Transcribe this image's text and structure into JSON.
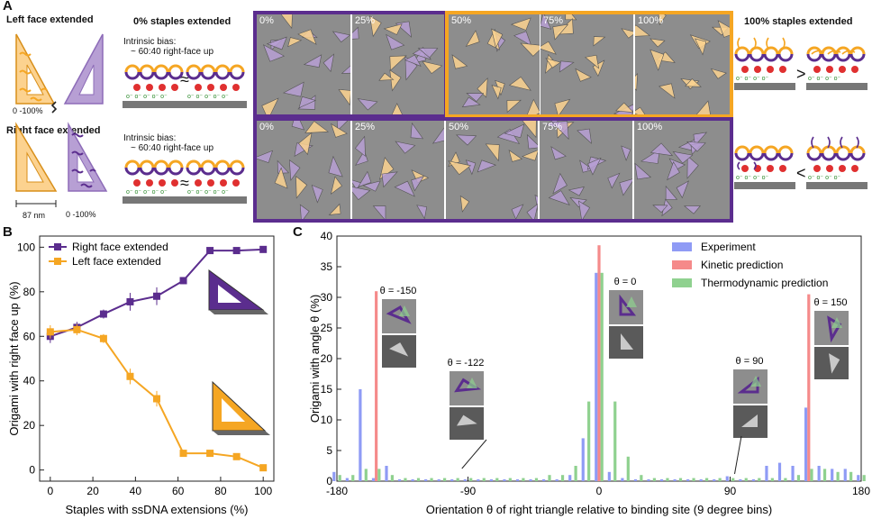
{
  "panel_a": {
    "letter": "A",
    "left_face_title": "Left face extended",
    "right_face_title": "Right face extended",
    "range_top": "0 -100%",
    "range_bottom": "0 -100%",
    "scale_label": "87 nm",
    "zero_title": "0% staples extended",
    "bias_line1": "Intrinsic bias:",
    "bias_line2": "~ 60:40 right-face up",
    "approx_symbol": "≈",
    "hundred_title": "100% staples extended",
    "greater_symbol": ">",
    "less_symbol": "<",
    "top_row_labels": [
      "0%",
      "25%",
      "50%",
      "75%",
      "100%"
    ],
    "bottom_row_labels": [
      "0%",
      "25%",
      "50%",
      "75%",
      "100%"
    ],
    "colors": {
      "purple": "#5b2d8e",
      "orange": "#f5a623",
      "light_purple": "#b79fd4",
      "light_orange": "#fcd28f"
    }
  },
  "panel_b": {
    "letter": "B",
    "chart_data": {
      "type": "line",
      "xlabel": "Staples with ssDNA extensions (%)",
      "ylabel": "Origami with right face up (%)",
      "x": [
        0,
        12.5,
        25,
        37.5,
        50,
        62.5,
        75,
        87.5,
        100
      ],
      "xlim": [
        -5,
        105
      ],
      "ylim": [
        -5,
        105
      ],
      "xticks": [
        0,
        20,
        40,
        60,
        80,
        100
      ],
      "yticks": [
        0,
        20,
        40,
        60,
        80,
        100
      ],
      "legend_position": "top-left",
      "series": [
        {
          "name": "Right face extended",
          "color": "#5b2d8e",
          "values": [
            60,
            64,
            70,
            75.5,
            78,
            85,
            98.5,
            98.5,
            99
          ],
          "errors": [
            3,
            2.5,
            2,
            4,
            4,
            1.5,
            1.5,
            1,
            1
          ]
        },
        {
          "name": "Left face extended",
          "color": "#f5a623",
          "values": [
            62,
            63,
            59,
            42,
            32,
            7.5,
            7.5,
            6,
            1
          ],
          "errors": [
            3,
            2.5,
            2,
            3.5,
            3.5,
            1,
            1,
            1,
            1.5
          ]
        }
      ]
    }
  },
  "panel_c": {
    "letter": "C",
    "chart_data": {
      "type": "bar",
      "xlabel": "Orientation θ of right triangle relative to binding site (9 degree bins)",
      "ylabel": "Origami with angle θ  (%)",
      "xlim": [
        -180,
        180
      ],
      "ylim": [
        0,
        40
      ],
      "xticks": [
        -180,
        -90,
        0,
        90,
        180
      ],
      "yticks": [
        0,
        5,
        10,
        15,
        20,
        25,
        30,
        35,
        40
      ],
      "legend_position": "top-right",
      "bin_width": 9,
      "series": [
        {
          "name": "Experiment",
          "color": "#8f9bf5",
          "x": [
            -180,
            -171,
            -162,
            -153,
            -144,
            -135,
            -126,
            -117,
            -108,
            -99,
            -90,
            -81,
            -72,
            -63,
            -54,
            -45,
            -36,
            -27,
            -18,
            -9,
            0,
            9,
            18,
            27,
            36,
            45,
            54,
            63,
            72,
            81,
            90,
            99,
            108,
            117,
            126,
            135,
            144,
            153,
            162,
            171,
            180
          ],
          "values": [
            1.5,
            0.5,
            15,
            0.5,
            2.5,
            0.3,
            0.3,
            0.3,
            0.3,
            0.3,
            0.3,
            0.3,
            0.3,
            0.3,
            0.3,
            0.3,
            0.3,
            0.3,
            1,
            7,
            34,
            1.5,
            0.5,
            0.3,
            0.3,
            0.3,
            0.3,
            0.3,
            0.3,
            0.3,
            0.8,
            0.3,
            0.3,
            2.5,
            3,
            2.5,
            12,
            2.5,
            2,
            2,
            1
          ]
        },
        {
          "name": "Kinetic prediction",
          "color": "#f58a8a",
          "x": [
            -153,
            0,
            144
          ],
          "values": [
            31,
            38.5,
            30.5
          ]
        },
        {
          "name": "Thermodynamic prediction",
          "color": "#8fd18f",
          "x": [
            -180,
            -171,
            -162,
            -153,
            -144,
            -135,
            -126,
            -117,
            -108,
            -99,
            -90,
            -81,
            -72,
            -63,
            -54,
            -45,
            -36,
            -27,
            -18,
            -9,
            0,
            9,
            18,
            27,
            36,
            45,
            54,
            63,
            72,
            81,
            90,
            99,
            108,
            117,
            126,
            135,
            144,
            153,
            162,
            171,
            180
          ],
          "values": [
            1,
            1,
            2,
            2,
            1,
            0.5,
            0.5,
            0.5,
            0.5,
            0.5,
            0.5,
            0.5,
            0.5,
            0.5,
            0.5,
            0.5,
            1,
            1,
            2.5,
            13,
            34,
            13,
            4,
            1,
            0.5,
            0.5,
            0.5,
            0.5,
            0.5,
            0.5,
            0.5,
            0.5,
            0.5,
            0.5,
            0.5,
            1,
            2,
            2,
            1.5,
            1.5,
            1
          ]
        }
      ],
      "annotations": [
        {
          "label": "θ = -150",
          "target_x": -150
        },
        {
          "label": "θ = -122",
          "target_x": -122
        },
        {
          "label": "θ = 0",
          "target_x": 0
        },
        {
          "label": "θ = 90",
          "target_x": 90
        },
        {
          "label": "θ = 150",
          "target_x": 150
        }
      ]
    }
  }
}
